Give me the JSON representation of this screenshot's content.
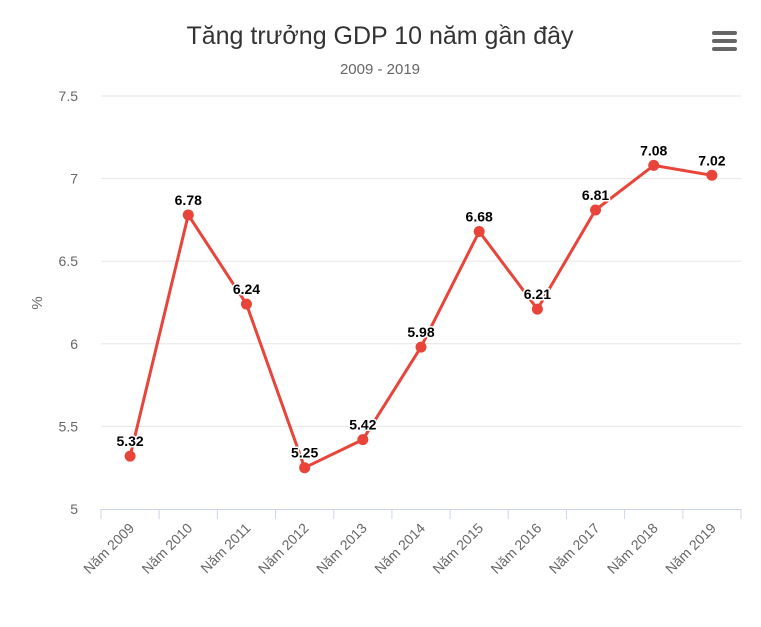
{
  "chart_data": {
    "type": "line",
    "title": "Tăng trưởng GDP 10 năm gần đây",
    "subtitle": "2009 - 2019",
    "ylabel": "%",
    "xlabel": "",
    "categories": [
      "Năm 2009",
      "Năm 2010",
      "Năm 2011",
      "Năm 2012",
      "Năm 2013",
      "Năm 2014",
      "Năm 2015",
      "Năm 2016",
      "Năm 2017",
      "Năm 2018",
      "Năm 2019"
    ],
    "series": [
      {
        "values": [
          5.32,
          6.78,
          6.24,
          5.25,
          5.42,
          5.98,
          6.68,
          6.21,
          6.81,
          7.08,
          7.02
        ]
      }
    ],
    "ylim": [
      5,
      7.5
    ],
    "yticks": [
      "5",
      "5.5",
      "6",
      "6.5",
      "7",
      "7.5"
    ],
    "ytick_values": [
      5,
      5.5,
      6,
      6.5,
      7,
      7.5
    ],
    "data_labels": [
      "5.32",
      "6.78",
      "6.24",
      "5.25",
      "5.42",
      "5.98",
      "6.68",
      "6.21",
      "6.81",
      "7.08",
      "7.02"
    ],
    "grid": true,
    "legend": "none",
    "colors": {
      "series": "#e8443a",
      "grid": "#e6e6e6",
      "axis": "#ccd6eb"
    }
  },
  "toolbar": {
    "menu_icon": "hamburger-menu-icon"
  }
}
